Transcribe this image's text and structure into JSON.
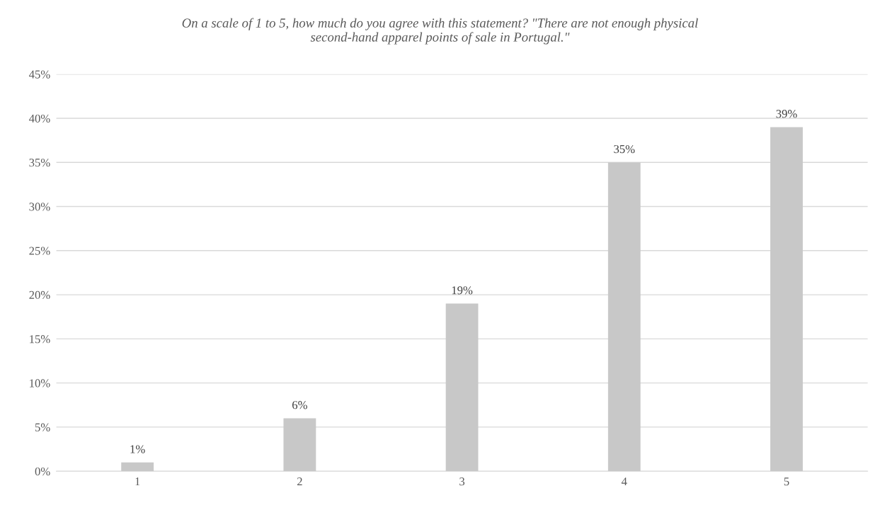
{
  "chart_data": {
    "type": "bar",
    "title": "On a scale of 1 to 5, how much do you agree with this statement? \"There are not enough physical\nsecond-hand apparel points of sale in Portugal.\"",
    "categories": [
      "1",
      "2",
      "3",
      "4",
      "5"
    ],
    "values": [
      1,
      6,
      19,
      35,
      39
    ],
    "value_labels": [
      "1%",
      "6%",
      "19%",
      "35%",
      "39%"
    ],
    "color": "#c8c8c8",
    "ylim": [
      0,
      45
    ],
    "yticks": [
      {
        "value": 0,
        "label": "0%"
      },
      {
        "value": 5,
        "label": "5%"
      },
      {
        "value": 10,
        "label": "10%"
      },
      {
        "value": 15,
        "label": "15%"
      },
      {
        "value": 20,
        "label": "20%"
      },
      {
        "value": 25,
        "label": "25%"
      },
      {
        "value": 30,
        "label": "30%"
      },
      {
        "value": 35,
        "label": "35%"
      },
      {
        "value": 40,
        "label": "40%"
      },
      {
        "value": 45,
        "label": "45%"
      }
    ],
    "grid": "y",
    "legend": false
  }
}
